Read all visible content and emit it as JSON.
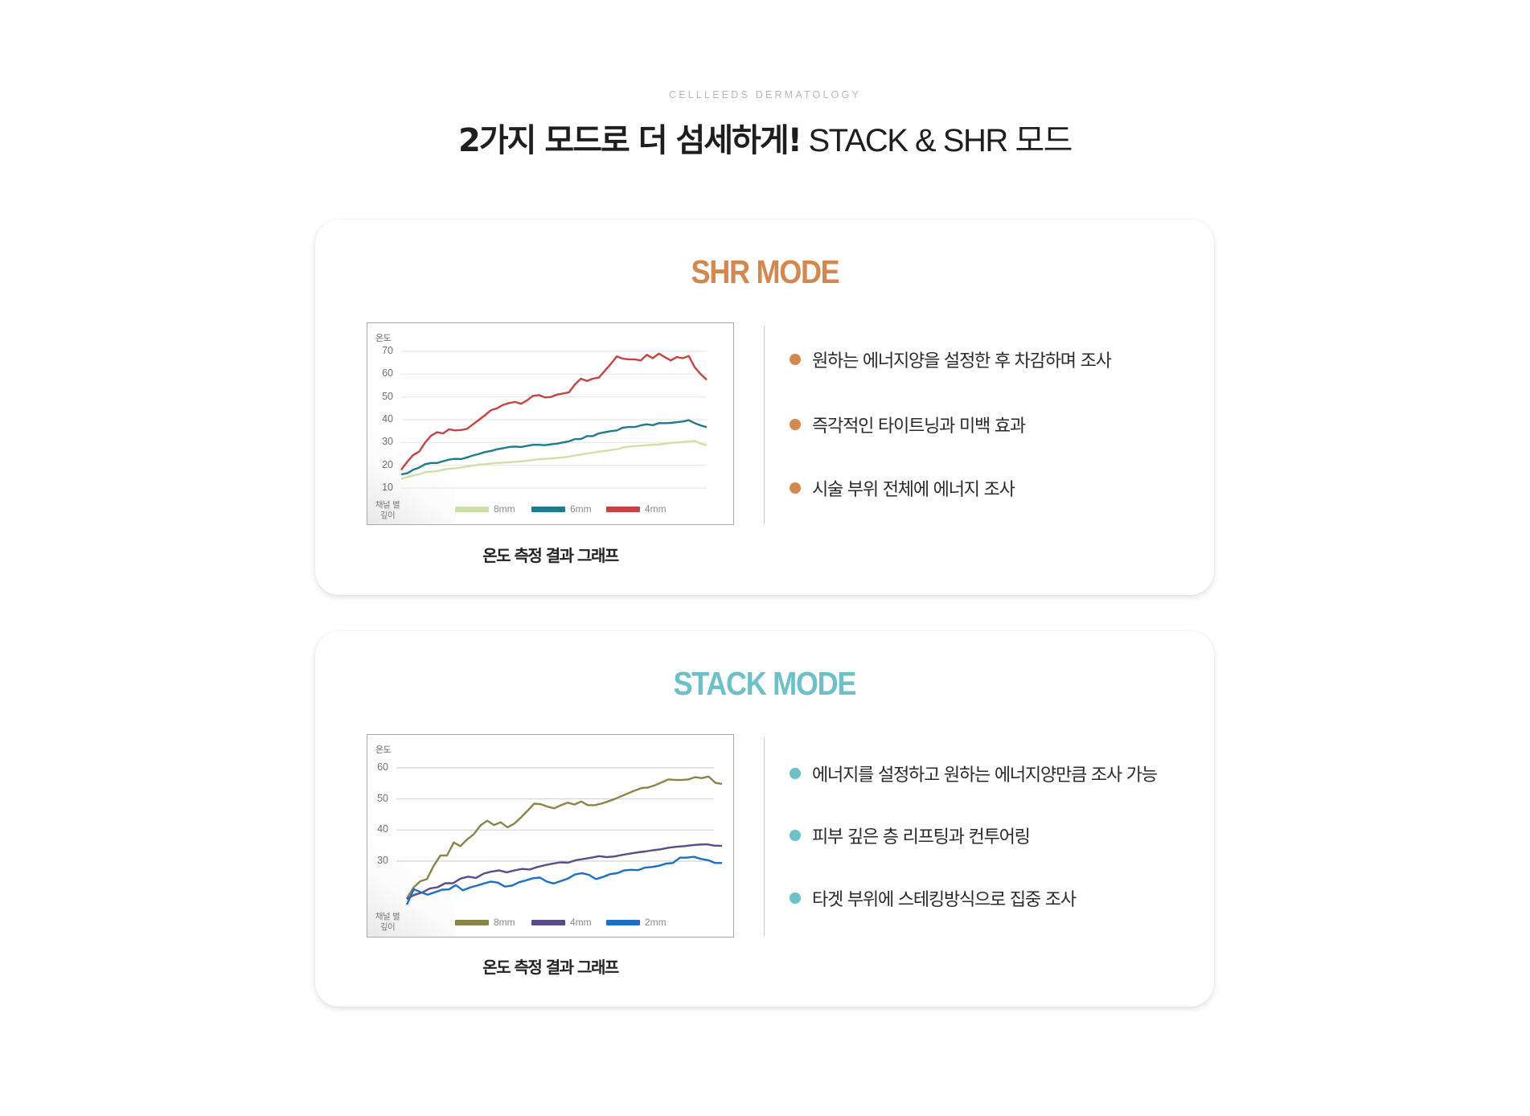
{
  "header": {
    "eyebrow": "CELLLEEDS DERMATOLOGY",
    "headline_bold": "2가지 모드로 더 섬세하게!",
    "headline_light": " STACK & SHR 모드"
  },
  "colors": {
    "shr_accent": "#d4874e",
    "stack_accent": "#6dbfc8",
    "text": "#222222",
    "card_bg": "#ffffff"
  },
  "cards": [
    {
      "id": "shr",
      "title": "SHR MODE",
      "caption": "온도 측정 결과 그래프",
      "bullets": [
        "원하는 에너지양을 설정한 후 차감하며 조사",
        "즉각적인 타이트닝과 미백 효과",
        "시술 부위 전체에 에너지 조사"
      ]
    },
    {
      "id": "stack",
      "title": "STACK MODE",
      "caption": "온도 측정 결과 그래프",
      "bullets": [
        "에너지를 설정하고 원하는 에너지양만큼 조사 가능",
        "피부 깊은 층 리프팅과 컨투어링",
        "타겟 부위에 스테킹방식으로 집중 조사"
      ]
    }
  ],
  "chart_data": [
    {
      "type": "line",
      "title": "SHR MODE 온도 측정 결과 그래프",
      "ylabel": "온도",
      "xlabel": "채널 별 깊이",
      "yticks": [
        10,
        20,
        30,
        40,
        50,
        60,
        70
      ],
      "ylim": [
        10,
        70
      ],
      "grid": true,
      "legend_position": "bottom",
      "series": [
        {
          "name": "8mm",
          "color": "#cfe0a6",
          "values": [
            14,
            14.8,
            15.5,
            16,
            17,
            17.2,
            17.5,
            18,
            18.5,
            18.6,
            19,
            19.5,
            19.8,
            20.3,
            20.5,
            20.8,
            21,
            21.2,
            21.3,
            21.5,
            21.7,
            22,
            22.3,
            22.7,
            22.8,
            23,
            23.2,
            23.5,
            23.8,
            24.3,
            24.7,
            25.2,
            25.5,
            26,
            26.3,
            26.7,
            27,
            27.8,
            28.2,
            28.4,
            28.6,
            28.8,
            29,
            29.1,
            29.5,
            29.8,
            30,
            30.2,
            30.5,
            30.7,
            29.5,
            28.8
          ]
        },
        {
          "name": "6mm",
          "color": "#1f7a90",
          "values": [
            16,
            16.5,
            18,
            19,
            20.5,
            21,
            21,
            21.8,
            22.5,
            22.8,
            22.7,
            23.5,
            24.3,
            25,
            25.8,
            26.3,
            27,
            27.5,
            28,
            28.2,
            28,
            28.5,
            29,
            29,
            28.8,
            29.2,
            29.5,
            30,
            30.5,
            31.5,
            31.5,
            32.8,
            32.8,
            34,
            34.5,
            35,
            35.3,
            36.5,
            36.8,
            36.8,
            37.5,
            38,
            37.6,
            38.5,
            38.5,
            38.6,
            38.9,
            39.2,
            39.8,
            38.5,
            37.5,
            36.7
          ]
        },
        {
          "name": "4mm",
          "color": "#c4443f",
          "values": [
            18,
            21.5,
            24.5,
            26,
            30,
            33,
            34.5,
            34,
            35.8,
            35.3,
            35.5,
            36,
            38,
            40,
            42,
            44.2,
            45,
            46.5,
            47.3,
            47.8,
            47,
            48.5,
            50.5,
            50.8,
            49.8,
            50,
            51,
            51.5,
            52,
            55.5,
            58,
            57,
            58,
            58.5,
            61.5,
            64.5,
            67.8,
            66.8,
            66.5,
            66.5,
            66,
            68.5,
            67,
            69,
            67.5,
            66,
            67.5,
            67,
            68,
            63,
            60,
            57.5
          ]
        }
      ]
    },
    {
      "type": "line",
      "title": "STACK MODE 온도 측정 결과 그래프",
      "ylabel": "온도",
      "xlabel": "채널 별 깊이",
      "yticks": [
        30,
        40,
        50,
        60
      ],
      "ylim": [
        30,
        60
      ],
      "grid": true,
      "legend_position": "bottom",
      "series": [
        {
          "name": "8mm",
          "color": "#8a8448",
          "values": [
            18,
            21.5,
            23.5,
            24.2,
            28.5,
            31.8,
            31.8,
            36,
            34.8,
            37,
            38.7,
            41.5,
            43,
            41.6,
            42.5,
            40.9,
            42,
            44,
            46.2,
            48.5,
            48.3,
            47.5,
            47,
            48,
            48.8,
            48.2,
            49.2,
            48,
            48,
            48.5,
            49.2,
            50,
            50.9,
            51.8,
            52.7,
            53.5,
            53.7,
            54.4,
            55.3,
            56.3,
            56.1,
            56.1,
            56.3,
            57,
            56.7,
            57.2,
            55.2,
            54.8
          ]
        },
        {
          "name": "4mm",
          "color": "#5d4a8c",
          "values": [
            17.8,
            19.2,
            19.9,
            21.2,
            21.6,
            22.9,
            22.9,
            24.4,
            25,
            24.6,
            26,
            26.6,
            27,
            26.4,
            27,
            27.5,
            27.3,
            28.1,
            28.7,
            29.2,
            29.6,
            29.5,
            30.3,
            30.7,
            31.1,
            31.6,
            31.3,
            31.5,
            32,
            32.4,
            32.8,
            33.1,
            33.5,
            33.8,
            34.3,
            34.6,
            34.8,
            35.1,
            35.3,
            35.4,
            35,
            34.9
          ]
        },
        {
          "name": "2mm",
          "color": "#1a6fc6",
          "values": [
            16,
            21,
            20,
            19.2,
            20,
            20.8,
            20.9,
            22.3,
            20.6,
            21.5,
            22.1,
            22.8,
            23.4,
            23.1,
            21.8,
            22.1,
            23.2,
            23.8,
            24.5,
            24.7,
            23.4,
            22.8,
            23.6,
            24.4,
            25.7,
            26.1,
            25.6,
            24.2,
            24.9,
            25.8,
            26.1,
            27,
            27.2,
            27.1,
            27.9,
            28.1,
            28.5,
            29.2,
            29.4,
            31.1,
            31.1,
            31.4,
            30.7,
            30.3,
            29.4,
            29.4
          ]
        }
      ]
    }
  ]
}
